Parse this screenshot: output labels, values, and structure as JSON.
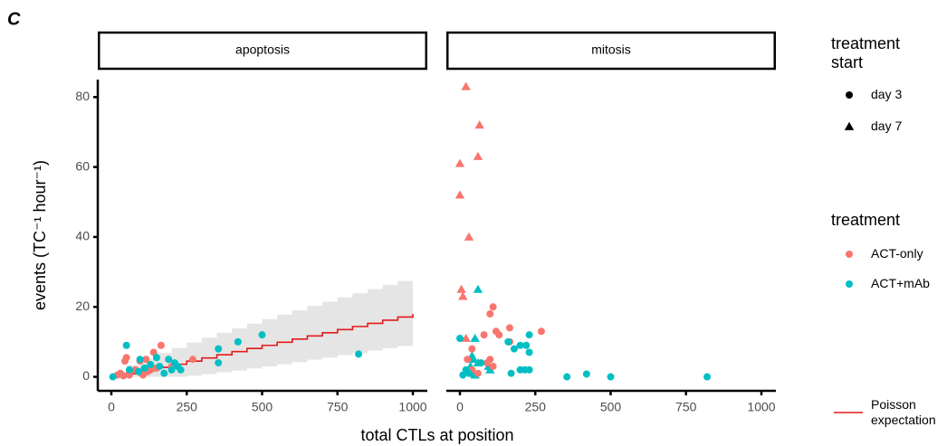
{
  "chart_data": {
    "type": "scatter",
    "panel_label": "C",
    "x_label": "total CTLs at position",
    "y_label": "events (TC⁻¹ hour⁻¹)",
    "xlim": [
      -45,
      1048
    ],
    "ylim": [
      -4,
      85
    ],
    "xticks": [
      0,
      250,
      500,
      750,
      1000
    ],
    "yticks": [
      0,
      20,
      40,
      60,
      80
    ],
    "shape_legend": {
      "title": "treatment start",
      "items": [
        {
          "label": "day 3",
          "shape": "circle"
        },
        {
          "label": "day 7",
          "shape": "triangle"
        }
      ]
    },
    "color_legend": {
      "title": "treatment",
      "items": [
        {
          "label": "ACT-only",
          "color": "#F8766D"
        },
        {
          "label": "ACT+mAb",
          "color": "#00BFC4"
        }
      ]
    },
    "line_legend": {
      "label": "Poisson expectation",
      "color": "#e41a1c",
      "ribbon_color": "#e5e5e5"
    },
    "facets": [
      {
        "title": "apoptosis",
        "expectation": {
          "x": [
            0,
            50,
            100,
            150,
            200,
            250,
            300,
            350,
            400,
            450,
            500,
            550,
            600,
            650,
            700,
            750,
            800,
            850,
            900,
            950,
            1000
          ],
          "values": [
            0,
            0.9,
            1.8,
            2.7,
            3.6,
            4.5,
            5.4,
            6.3,
            7.2,
            8.1,
            9.0,
            9.9,
            10.8,
            11.7,
            12.6,
            13.5,
            14.4,
            15.3,
            16.2,
            17.1,
            18.0
          ],
          "upper": [
            0,
            3.3,
            5.2,
            6.8,
            8.3,
            9.8,
            11.2,
            12.6,
            13.9,
            15.2,
            16.5,
            17.8,
            19.0,
            20.3,
            21.5,
            22.7,
            23.9,
            25.1,
            26.3,
            27.4,
            28.6
          ],
          "lower": [
            0,
            0,
            0,
            0,
            0,
            0.3,
            0.75,
            1.3,
            1.8,
            2.4,
            3.0,
            3.6,
            4.2,
            4.9,
            5.5,
            6.2,
            6.8,
            7.5,
            8.2,
            8.8,
            9.5
          ]
        },
        "series": [
          {
            "treatment": "ACT-only",
            "start": "day 3",
            "x": [
              20,
              30,
              40,
              45,
              50,
              60,
              80,
              95,
              100,
              105,
              110,
              115,
              120,
              130,
              140,
              150,
              165,
              200,
              270,
              60
            ],
            "y": [
              0.5,
              1,
              0.3,
              4.5,
              5.5,
              0.5,
              2,
              4.5,
              1,
              0.5,
              2,
              5,
              1.5,
              2,
              7,
              2.5,
              9,
              3,
              5,
              1.5
            ]
          },
          {
            "treatment": "ACT+mAb",
            "start": "day 3",
            "x": [
              5,
              50,
              60,
              90,
              95,
              110,
              150,
              160,
              175,
              190,
              200,
              210,
              220,
              230,
              355,
              355,
              420,
              500,
              820,
              130
            ],
            "y": [
              0,
              9,
              2,
              1.5,
              5,
              2.5,
              5.5,
              3,
              1,
              5,
              2,
              4,
              3,
              2,
              8,
              4,
              10,
              12,
              6.5,
              3.5
            ]
          }
        ]
      },
      {
        "title": "mitosis",
        "series": [
          {
            "treatment": "ACT-only",
            "start": "day 7",
            "x": [
              20,
              65,
              60,
              0,
              0,
              30,
              5,
              10,
              20
            ],
            "y": [
              83,
              72,
              63,
              61,
              52,
              40,
              25,
              23,
              11
            ]
          },
          {
            "treatment": "ACT+mAb",
            "start": "day 7",
            "x": [
              50,
              60,
              40,
              45,
              35,
              45,
              60,
              100,
              95,
              50
            ],
            "y": [
              11,
              25,
              6,
              5,
              3,
              1,
              4,
              2,
              3,
              0.5
            ]
          },
          {
            "treatment": "ACT-only",
            "start": "day 3",
            "x": [
              110,
              100,
              165,
              270,
              120,
              80,
              165,
              25,
              40,
              100,
              110,
              90,
              130,
              40,
              60
            ],
            "y": [
              20,
              18,
              14,
              13,
              13,
              12,
              10,
              5,
              8,
              5,
              3,
              4,
              12,
              2,
              1
            ]
          },
          {
            "treatment": "ACT+mAb",
            "start": "day 3",
            "x": [
              0,
              20,
              30,
              70,
              160,
              180,
              200,
              220,
              230,
              230,
              170,
              200,
              215,
              230,
              355,
              420,
              500,
              820,
              10
            ],
            "y": [
              11,
              2,
              1,
              4,
              10,
              8,
              9,
              9,
              12,
              7,
              1,
              2,
              2,
              2,
              0,
              0.8,
              0,
              0,
              0.5
            ]
          }
        ]
      }
    ]
  }
}
